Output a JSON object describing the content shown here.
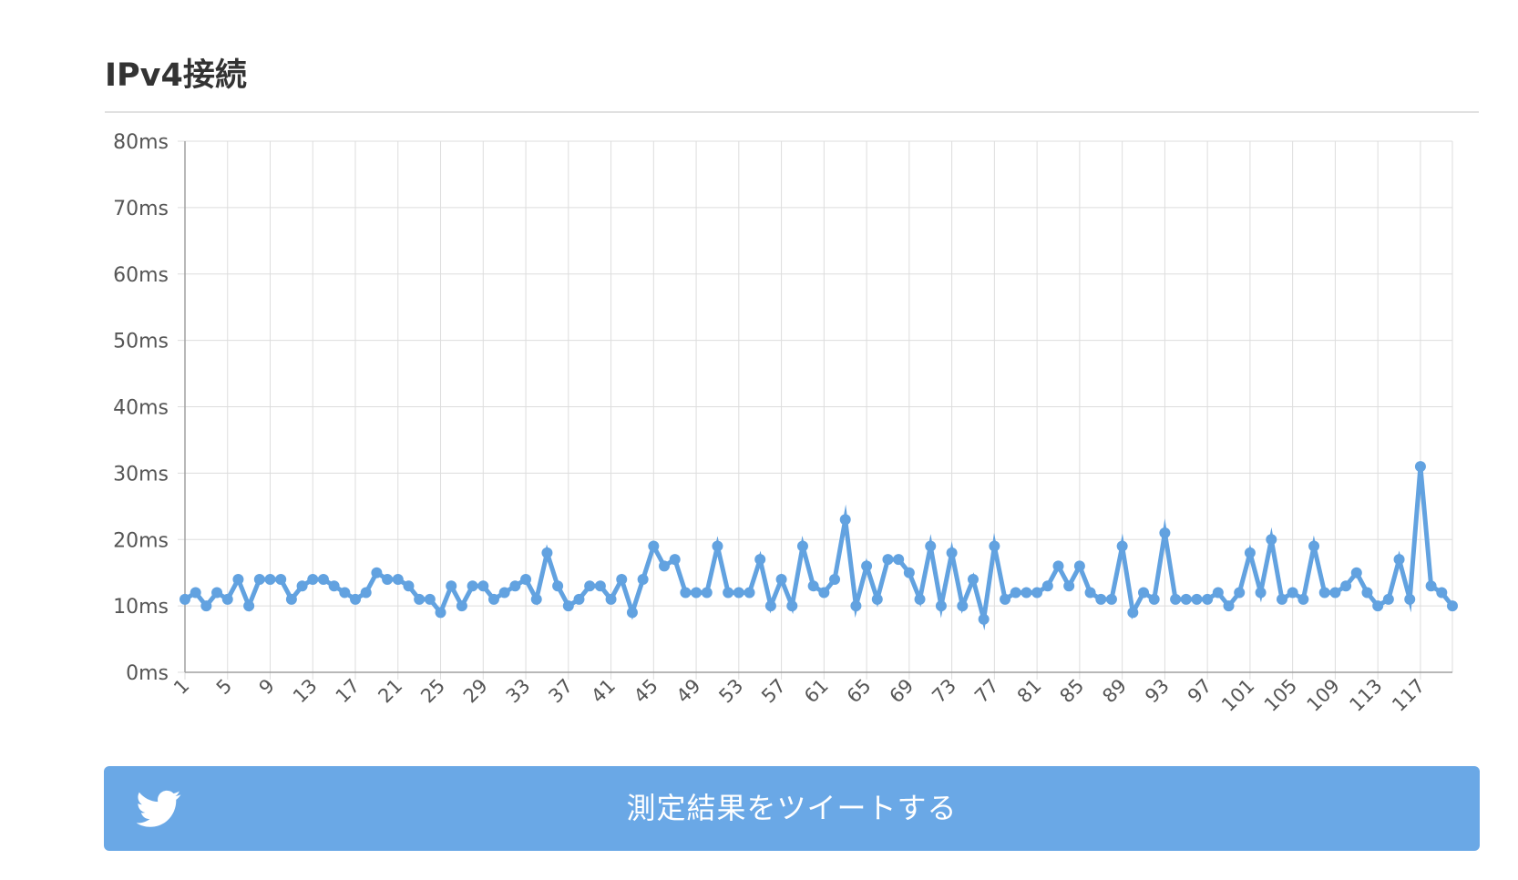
{
  "section": {
    "title": "IPv4接続"
  },
  "tweet_button": {
    "label": "測定結果をツイートする",
    "icon": "twitter-bird-icon"
  },
  "colors": {
    "line": "#62a2e0",
    "button": "#6aa8e6",
    "grid": "#dddddd",
    "axis": "#a0a0a0",
    "tick_text": "#555555"
  },
  "chart_data": {
    "type": "line",
    "title": "",
    "xlabel": "",
    "ylabel": "",
    "y_unit": "ms",
    "ylim": [
      0,
      80
    ],
    "y_ticks": [
      "0ms",
      "10ms",
      "20ms",
      "30ms",
      "40ms",
      "50ms",
      "60ms",
      "70ms",
      "80ms"
    ],
    "x_tick_labels": [
      "1",
      "5",
      "9",
      "13",
      "17",
      "21",
      "25",
      "29",
      "33",
      "37",
      "41",
      "45",
      "49",
      "53",
      "57",
      "61",
      "65",
      "69",
      "73",
      "77",
      "81",
      "85",
      "89",
      "93",
      "97",
      "101",
      "105",
      "109",
      "113",
      "117"
    ],
    "grid": true,
    "legend": "none",
    "series": [
      {
        "values": [
          11,
          12,
          10,
          12,
          11,
          14,
          10,
          14,
          14,
          14,
          11,
          13,
          14,
          14,
          13,
          12,
          11,
          12,
          15,
          14,
          14,
          13,
          11,
          11,
          9,
          13,
          10,
          13,
          13,
          11,
          12,
          13,
          14,
          11,
          18,
          13,
          10,
          11,
          13,
          13,
          11,
          14,
          9,
          14,
          19,
          16,
          17,
          12,
          12,
          12,
          19,
          12,
          12,
          12,
          17,
          10,
          14,
          10,
          19,
          13,
          12,
          14,
          23,
          10,
          16,
          11,
          17,
          17,
          15,
          11,
          19,
          10,
          18,
          10,
          14,
          8,
          19,
          11,
          12,
          12,
          12,
          13,
          16,
          13,
          16,
          12,
          11,
          11,
          19,
          9,
          12,
          11,
          21,
          11,
          11,
          11,
          11,
          12,
          10,
          12,
          18,
          12,
          20,
          11,
          12,
          11,
          19,
          12,
          12,
          13,
          15,
          12,
          10,
          11,
          17,
          11,
          31,
          13,
          12,
          10
        ]
      }
    ]
  }
}
